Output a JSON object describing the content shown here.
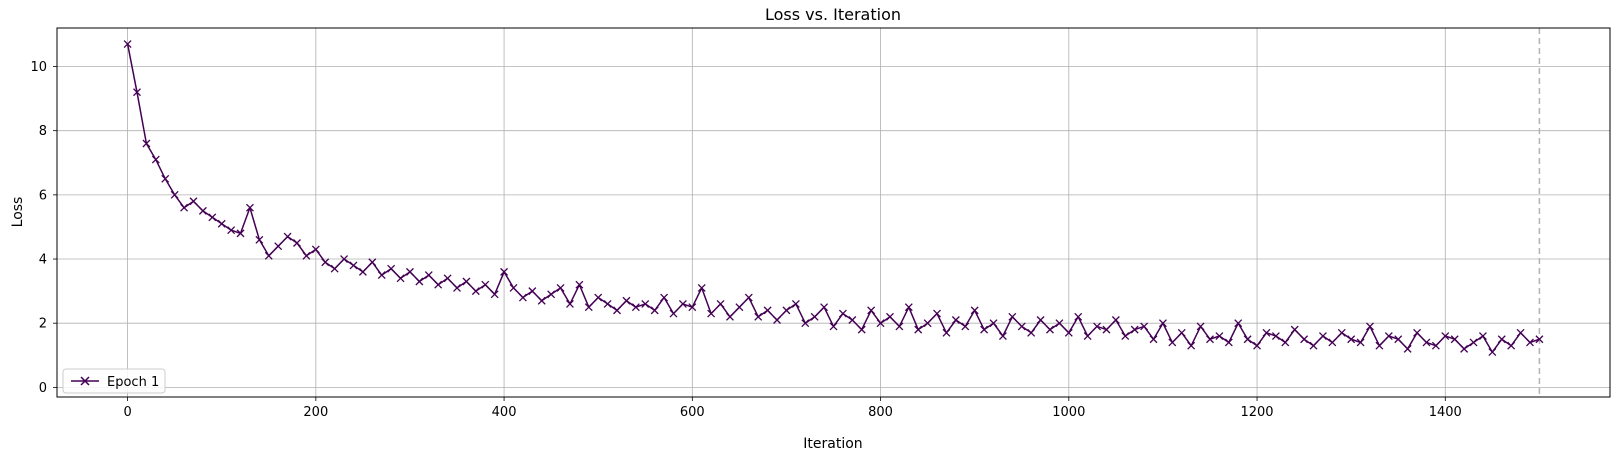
{
  "chart_data": {
    "type": "line",
    "title": "Loss vs. Iteration",
    "xlabel": "Iteration",
    "ylabel": "Loss",
    "xlim": [
      -75,
      1575
    ],
    "ylim": [
      -0.3,
      11.2
    ],
    "xticks": [
      0,
      200,
      400,
      600,
      800,
      1000,
      1200,
      1400
    ],
    "yticks": [
      0,
      2,
      4,
      6,
      8,
      10
    ],
    "grid": true,
    "legend_position": "lower-left",
    "marker": "x",
    "epoch_boundary_x": 1500,
    "series": [
      {
        "name": "Epoch 1",
        "color": "#440154",
        "x": [
          0,
          10,
          20,
          30,
          40,
          50,
          60,
          70,
          80,
          90,
          100,
          110,
          120,
          130,
          140,
          150,
          160,
          170,
          180,
          190,
          200,
          210,
          220,
          230,
          240,
          250,
          260,
          270,
          280,
          290,
          300,
          310,
          320,
          330,
          340,
          350,
          360,
          370,
          380,
          390,
          400,
          410,
          420,
          430,
          440,
          450,
          460,
          470,
          480,
          490,
          500,
          510,
          520,
          530,
          540,
          550,
          560,
          570,
          580,
          590,
          600,
          610,
          620,
          630,
          640,
          650,
          660,
          670,
          680,
          690,
          700,
          710,
          720,
          730,
          740,
          750,
          760,
          770,
          780,
          790,
          800,
          810,
          820,
          830,
          840,
          850,
          860,
          870,
          880,
          890,
          900,
          910,
          920,
          930,
          940,
          950,
          960,
          970,
          980,
          990,
          1000,
          1010,
          1020,
          1030,
          1040,
          1050,
          1060,
          1070,
          1080,
          1090,
          1100,
          1110,
          1120,
          1130,
          1140,
          1150,
          1160,
          1170,
          1180,
          1190,
          1200,
          1210,
          1220,
          1230,
          1240,
          1250,
          1260,
          1270,
          1280,
          1290,
          1300,
          1310,
          1320,
          1330,
          1340,
          1350,
          1360,
          1370,
          1380,
          1390,
          1400,
          1410,
          1420,
          1430,
          1440,
          1450,
          1460,
          1470,
          1480,
          1490,
          1500
        ],
        "y": [
          10.7,
          9.2,
          7.6,
          7.1,
          6.5,
          6.0,
          5.6,
          5.8,
          5.5,
          5.3,
          5.1,
          4.9,
          4.8,
          5.6,
          4.6,
          4.1,
          4.4,
          4.7,
          4.5,
          4.1,
          4.3,
          3.9,
          3.7,
          4.0,
          3.8,
          3.6,
          3.9,
          3.5,
          3.7,
          3.4,
          3.6,
          3.3,
          3.5,
          3.2,
          3.4,
          3.1,
          3.3,
          3.0,
          3.2,
          2.9,
          3.6,
          3.1,
          2.8,
          3.0,
          2.7,
          2.9,
          3.1,
          2.6,
          3.2,
          2.5,
          2.8,
          2.6,
          2.4,
          2.7,
          2.5,
          2.6,
          2.4,
          2.8,
          2.3,
          2.6,
          2.5,
          3.1,
          2.3,
          2.6,
          2.2,
          2.5,
          2.8,
          2.2,
          2.4,
          2.1,
          2.4,
          2.6,
          2.0,
          2.2,
          2.5,
          1.9,
          2.3,
          2.1,
          1.8,
          2.4,
          2.0,
          2.2,
          1.9,
          2.5,
          1.8,
          2.0,
          2.3,
          1.7,
          2.1,
          1.9,
          2.4,
          1.8,
          2.0,
          1.6,
          2.2,
          1.9,
          1.7,
          2.1,
          1.8,
          2.0,
          1.7,
          2.2,
          1.6,
          1.9,
          1.8,
          2.1,
          1.6,
          1.8,
          1.9,
          1.5,
          2.0,
          1.4,
          1.7,
          1.3,
          1.9,
          1.5,
          1.6,
          1.4,
          2.0,
          1.5,
          1.3,
          1.7,
          1.6,
          1.4,
          1.8,
          1.5,
          1.3,
          1.6,
          1.4,
          1.7,
          1.5,
          1.4,
          1.9,
          1.3,
          1.6,
          1.5,
          1.2,
          1.7,
          1.4,
          1.3,
          1.6,
          1.5,
          1.2,
          1.4,
          1.6,
          1.1,
          1.5,
          1.3,
          1.7,
          1.4,
          1.5
        ]
      }
    ]
  }
}
